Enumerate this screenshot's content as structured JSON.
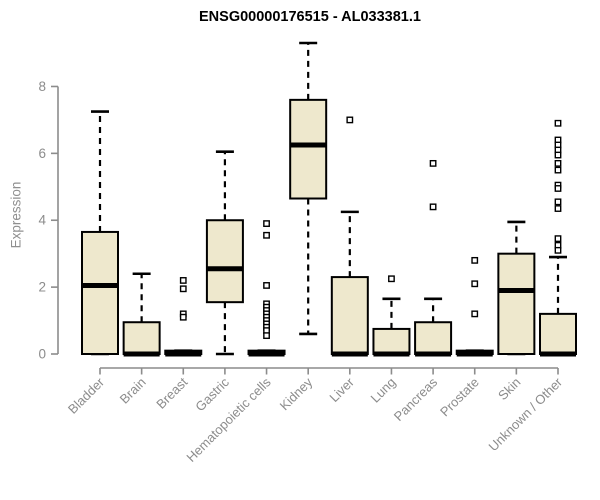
{
  "chart_data": {
    "type": "boxplot",
    "title": "ENSG00000176515 - AL033381.1",
    "ylabel": "Expression",
    "ylim": [
      0,
      9.5
    ],
    "yticks": [
      0,
      2,
      4,
      6,
      8
    ],
    "grid": false,
    "legend": false,
    "categories": [
      "Bladder",
      "Brain",
      "Breast",
      "Gastric",
      "Hematopoietic cells",
      "Kidney",
      "Liver",
      "Lung",
      "Pancreas",
      "Prostate",
      "Skin",
      "Unknown / Other"
    ],
    "boxes": [
      {
        "category": "Bladder",
        "whisker_low": 0,
        "q1": 0,
        "median": 2.05,
        "q3": 3.65,
        "whisker_high": 7.25,
        "outliers": []
      },
      {
        "category": "Brain",
        "whisker_low": 0,
        "q1": 0,
        "median": 0,
        "q3": 0.95,
        "whisker_high": 2.4,
        "outliers": []
      },
      {
        "category": "Breast",
        "whisker_low": 0,
        "q1": 0,
        "median": 0,
        "q3": 0.1,
        "whisker_high": 0.1,
        "outliers": [
          2.2,
          1.95,
          1.2,
          1.1
        ]
      },
      {
        "category": "Gastric",
        "whisker_low": 0,
        "q1": 1.55,
        "median": 2.55,
        "q3": 4.0,
        "whisker_high": 6.05,
        "outliers": []
      },
      {
        "category": "Hematopoietic cells",
        "whisker_low": 0,
        "q1": 0,
        "median": 0,
        "q3": 0.1,
        "whisker_high": 0.1,
        "outliers": [
          3.9,
          3.55,
          2.05,
          1.5,
          1.4,
          1.3,
          1.2,
          1.1,
          1.0,
          0.9,
          0.8,
          0.7,
          0.55
        ]
      },
      {
        "category": "Kidney",
        "whisker_low": 0.6,
        "q1": 4.65,
        "median": 6.25,
        "q3": 7.6,
        "whisker_high": 9.3,
        "outliers": []
      },
      {
        "category": "Liver",
        "whisker_low": 0,
        "q1": 0,
        "median": 0,
        "q3": 2.3,
        "whisker_high": 4.25,
        "outliers": [
          7.0
        ]
      },
      {
        "category": "Lung",
        "whisker_low": 0,
        "q1": 0,
        "median": 0,
        "q3": 0.75,
        "whisker_high": 1.65,
        "outliers": [
          2.25
        ]
      },
      {
        "category": "Pancreas",
        "whisker_low": 0,
        "q1": 0,
        "median": 0,
        "q3": 0.95,
        "whisker_high": 1.65,
        "outliers": [
          5.7,
          4.4
        ]
      },
      {
        "category": "Prostate",
        "whisker_low": 0,
        "q1": 0,
        "median": 0,
        "q3": 0.1,
        "whisker_high": 0.1,
        "outliers": [
          2.8,
          2.1,
          1.2
        ]
      },
      {
        "category": "Skin",
        "whisker_low": 0,
        "q1": 0,
        "median": 1.9,
        "q3": 3.0,
        "whisker_high": 3.95,
        "outliers": []
      },
      {
        "category": "Unknown / Other",
        "whisker_low": 0,
        "q1": 0,
        "median": 0,
        "q3": 1.2,
        "whisker_high": 2.9,
        "outliers": [
          6.9,
          6.4,
          6.25,
          6.1,
          5.95,
          5.7,
          5.5,
          5.05,
          4.95,
          4.55,
          4.35,
          3.45,
          3.25,
          3.1
        ]
      }
    ],
    "colors": {
      "box_fill": "#EEE8CD",
      "box_stroke": "#000000",
      "median": "#000000",
      "whisker": "#000000",
      "outlier_fill": "#FFFFFF",
      "axis": "#8C8C8C",
      "title": "#000000",
      "background": "#FFFFFF"
    }
  }
}
